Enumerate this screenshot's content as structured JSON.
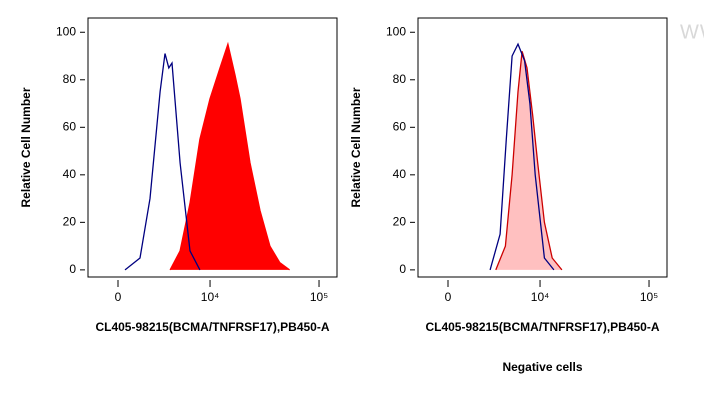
{
  "chart_data": [
    {
      "type": "histogram-overlay",
      "xlabel": "CL405-98215(BCMA/TNFRSF17),PB450-A",
      "ylabel": "Relative Cell Number",
      "xscale": "biexponential",
      "xlim": [
        -2000,
        150000
      ],
      "xticks": [
        0,
        {
          "value": 10000,
          "label": "10⁴"
        },
        {
          "value": 100000,
          "label": "10⁵"
        }
      ],
      "ylim": [
        -3,
        106
      ],
      "yticks": [
        0,
        20,
        40,
        60,
        80,
        100
      ],
      "series": [
        {
          "color": "#ff0000",
          "fill": true,
          "fill_color": "#ff0000",
          "x": [
            3930,
            5060,
            6390,
            8000,
            10000,
            12400,
            14700,
            17100,
            19000,
            23500,
            29000,
            35700,
            44000,
            54000
          ],
          "values": [
            0,
            8,
            28,
            55,
            72,
            85,
            95,
            82,
            72,
            45,
            25,
            10,
            3,
            0
          ]
        },
        {
          "color": "#000080",
          "fill": false,
          "x": [
            440,
            1417,
            2146,
            2976,
            3420,
            3800,
            4130,
            5060,
            6390,
            8000
          ],
          "values": [
            0,
            5,
            30,
            75,
            91,
            85,
            87,
            45,
            8,
            0
          ]
        }
      ]
    },
    {
      "type": "histogram-overlay",
      "xlabel": "CL405-98215(BCMA/TNFRSF17),PB450-A",
      "ylabel": "Relative Cell Number",
      "caption": "Negative cells",
      "watermark": "WWW.PTGLAB.COM",
      "xscale": "biexponential",
      "xlim": [
        -2000,
        150000
      ],
      "xticks": [
        0,
        {
          "value": 10000,
          "label": "10⁴"
        },
        {
          "value": 100000,
          "label": "10⁵"
        }
      ],
      "ylim": [
        -3,
        106
      ],
      "yticks": [
        0,
        20,
        40,
        60,
        80,
        100
      ],
      "series": [
        {
          "color": "#cc0000",
          "fill": true,
          "fill_color": "#ffc0c0",
          "x": [
            3500,
            4500,
            5300,
            6100,
            6700,
            7500,
            8500,
            9500,
            11000,
            13000,
            16000
          ],
          "values": [
            0,
            10,
            40,
            75,
            92,
            85,
            65,
            45,
            20,
            5,
            0
          ]
        },
        {
          "color": "#000080",
          "fill": false,
          "x": [
            2976,
            3930,
            4600,
            5300,
            6100,
            7100,
            8000,
            9000,
            11000,
            13500
          ],
          "values": [
            0,
            15,
            55,
            90,
            95,
            88,
            70,
            40,
            5,
            0
          ]
        }
      ]
    }
  ]
}
